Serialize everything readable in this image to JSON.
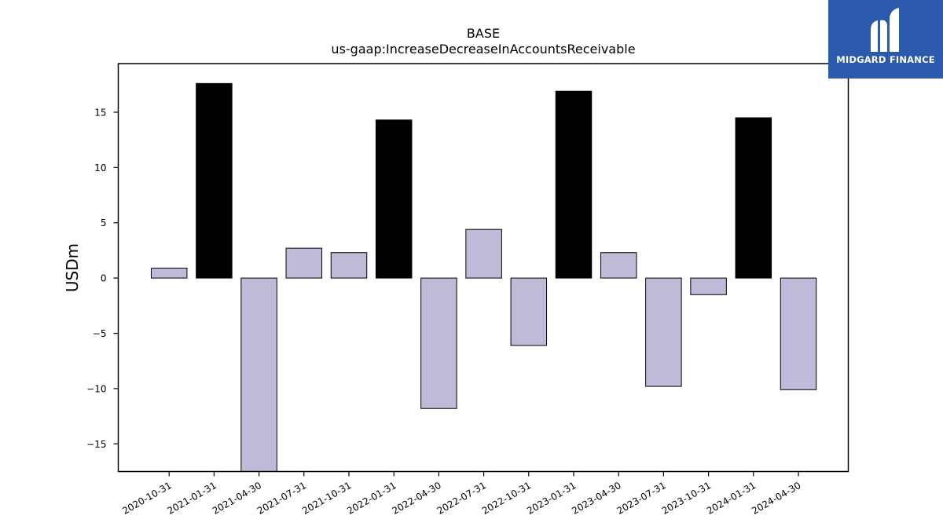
{
  "chart_data": {
    "type": "bar",
    "title": "BASE",
    "subtitle": "us-gaap:IncreaseDecreaseInAccountsReceivable",
    "xlabel": "",
    "ylabel": "USDm",
    "ylim": [
      -17.5,
      19.4
    ],
    "yticks": [
      -15,
      -10,
      -5,
      0,
      5,
      10,
      15
    ],
    "ytick_labels": [
      "−15",
      "−10",
      "−5",
      "0",
      "5",
      "10",
      "15"
    ],
    "grid": false,
    "categories": [
      "2020-10-31",
      "2021-01-31",
      "2021-04-30",
      "2021-07-31",
      "2021-10-31",
      "2022-01-31",
      "2022-04-30",
      "2022-07-31",
      "2022-10-31",
      "2023-01-31",
      "2023-04-30",
      "2023-07-31",
      "2023-10-31",
      "2024-01-31",
      "2024-04-30"
    ],
    "values": [
      0.9,
      17.6,
      -17.5,
      2.7,
      2.3,
      14.3,
      -11.8,
      4.4,
      -6.1,
      16.9,
      2.3,
      -9.8,
      -1.5,
      14.5,
      -10.1
    ],
    "colors": {
      "regular": "#bebbd9",
      "highlight": "#000000",
      "edge": "#000000"
    },
    "highlight_categories": [
      "2021-01-31",
      "2022-01-31",
      "2023-01-31",
      "2024-01-31"
    ]
  },
  "logo": {
    "text": "MIDGARD FINANCE",
    "background": "#2b5aad"
  }
}
